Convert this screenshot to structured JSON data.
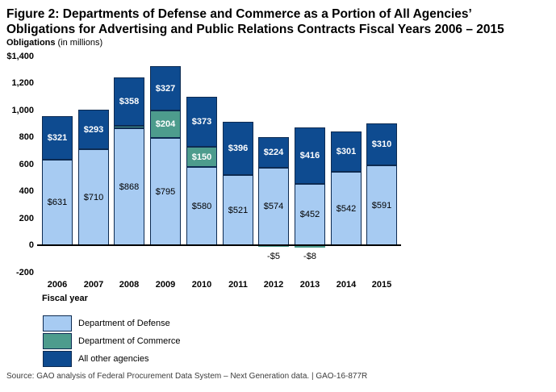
{
  "title": {
    "line1": "Figure 2: Departments of Defense and Commerce as a Portion of All Agencies’",
    "line2": "Obligations for Advertising and Public Relations Contracts Fiscal Years 2006 – 2015"
  },
  "subtitle": {
    "bold": "Obligations",
    "rest": "(in millions)"
  },
  "chart_data": {
    "type": "bar",
    "stacked": true,
    "title": "Departments of Defense and Commerce as a Portion of All Agencies’ Obligations for Advertising and Public Relations Contracts Fiscal Years 2006 – 2015",
    "xlabel": "Fiscal year",
    "ylabel": "Obligations (in millions)",
    "x_axis_label": "Fiscal year",
    "ylim": [
      -200,
      1400
    ],
    "grid": false,
    "legend_position": "bottom-left",
    "categories": [
      "2006",
      "2007",
      "2008",
      "2009",
      "2010",
      "2011",
      "2012",
      "2013",
      "2014",
      "2015"
    ],
    "y_ticks": [
      {
        "label": "$1,400",
        "value": 1400
      },
      {
        "label": "1,200",
        "value": 1200
      },
      {
        "label": "1,000",
        "value": 1000
      },
      {
        "label": "800",
        "value": 800
      },
      {
        "label": "600",
        "value": 600
      },
      {
        "label": "400",
        "value": 400
      },
      {
        "label": "200",
        "value": 200
      },
      {
        "label": "0",
        "value": 0
      },
      {
        "label": "-200",
        "value": -200
      }
    ],
    "series": [
      {
        "key": "defense",
        "name": "Department of Defense",
        "color": "#a7cbf2",
        "values": [
          631,
          710,
          868,
          795,
          580,
          521,
          574,
          452,
          542,
          591
        ],
        "labels": [
          "$631",
          "$710",
          "$868",
          "$795",
          "$580",
          "$521",
          "$574",
          "$452",
          "$542",
          "$591"
        ]
      },
      {
        "key": "commerce",
        "name": "Department of Commerce",
        "color": "#4d9c8d",
        "values": [
          0,
          0,
          15,
          204,
          150,
          0,
          -5,
          -8,
          0,
          0
        ],
        "labels": [
          "",
          "",
          "",
          "$204",
          "$150",
          "",
          "-$5",
          "-$8",
          "",
          ""
        ]
      },
      {
        "key": "all-other-agencies",
        "name": "All other agencies",
        "color": "#0e4b90",
        "values": [
          321,
          293,
          358,
          327,
          373,
          396,
          224,
          416,
          301,
          310
        ],
        "labels": [
          "$321",
          "$293",
          "$358",
          "$327",
          "$373",
          "$396",
          "$224",
          "$416",
          "$301",
          "$310"
        ]
      }
    ]
  },
  "source": {
    "text": "Source: GAO analysis of Federal Procurement Data System – Next Generation data. | GAO-16-877R"
  }
}
